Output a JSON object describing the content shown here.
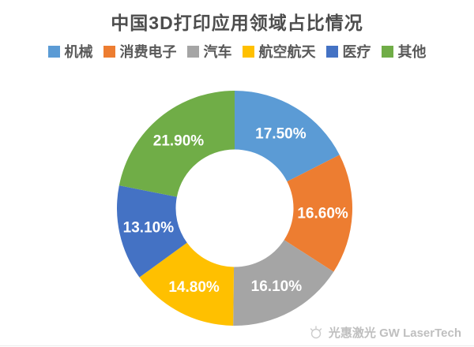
{
  "title": "中国3D打印应用领域占比情况",
  "chart_data": {
    "type": "pie",
    "subtype": "donut",
    "title": "中国3D打印应用领域占比情况",
    "categories": [
      "机械",
      "消费电子",
      "汽车",
      "航空航天",
      "医疗",
      "其他"
    ],
    "values": [
      17.5,
      16.6,
      16.1,
      14.8,
      13.1,
      21.9
    ],
    "data_labels": [
      "17.50%",
      "16.60%",
      "16.10%",
      "14.80%",
      "13.10%",
      "21.90%"
    ],
    "colors": [
      "#5B9BD5",
      "#ED7D31",
      "#A5A5A5",
      "#FFC000",
      "#4472C4",
      "#70AD47"
    ],
    "start_angle_deg": 0,
    "direction": "clockwise",
    "inner_radius_ratio": 0.5,
    "legend_position": "top",
    "label_color": "#ffffff"
  },
  "watermark": {
    "icon": "gw-laser-logo-icon",
    "text": "光惠激光 GW LaserTech"
  }
}
